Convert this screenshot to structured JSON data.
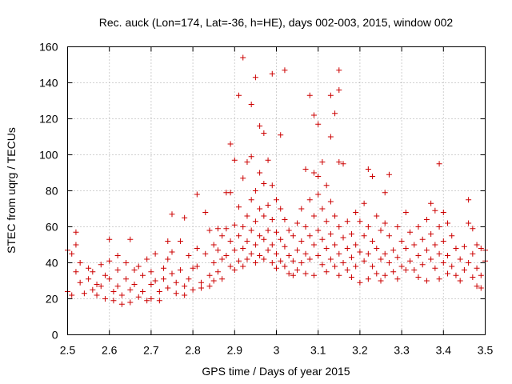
{
  "chart_data": {
    "type": "scatter",
    "title": "Rec. auck (Lon=174, Lat=-36, h=HE), days 002-003, 2015, window 002",
    "xlabel": "GPS time / Days of year 2015",
    "ylabel": "STEC from uqrg / TECUs",
    "xlim": [
      2.5,
      3.5
    ],
    "ylim": [
      0,
      160
    ],
    "xticks": [
      2.5,
      2.6,
      2.7,
      2.8,
      2.9,
      3,
      3.1,
      3.2,
      3.3,
      3.4,
      3.5
    ],
    "xtick_labels": [
      "2.5",
      "2.6",
      "2.7",
      "2.8",
      "2.9",
      "3",
      "3.1",
      "3.2",
      "3.3",
      "3.4",
      "3.5"
    ],
    "yticks": [
      0,
      20,
      40,
      60,
      80,
      100,
      120,
      140,
      160
    ],
    "ytick_labels": [
      "0",
      "20",
      "40",
      "60",
      "80",
      "100",
      "120",
      "140",
      "160"
    ],
    "grid": true,
    "marker": "+",
    "color": "#cc0000",
    "series": [
      {
        "name": "STEC",
        "points": [
          [
            2.5,
            47
          ],
          [
            2.5,
            24
          ],
          [
            2.51,
            45
          ],
          [
            2.51,
            22
          ],
          [
            2.52,
            57
          ],
          [
            2.52,
            50
          ],
          [
            2.52,
            35
          ],
          [
            2.53,
            40
          ],
          [
            2.53,
            29
          ],
          [
            2.54,
            23
          ],
          [
            2.55,
            31
          ],
          [
            2.55,
            37
          ],
          [
            2.56,
            25
          ],
          [
            2.56,
            35
          ],
          [
            2.57,
            28
          ],
          [
            2.57,
            22
          ],
          [
            2.58,
            39
          ],
          [
            2.58,
            27
          ],
          [
            2.59,
            20
          ],
          [
            2.59,
            33
          ],
          [
            2.6,
            53
          ],
          [
            2.6,
            41
          ],
          [
            2.6,
            31
          ],
          [
            2.61,
            24
          ],
          [
            2.61,
            19
          ],
          [
            2.62,
            36
          ],
          [
            2.62,
            27
          ],
          [
            2.62,
            44
          ],
          [
            2.63,
            22
          ],
          [
            2.63,
            17
          ],
          [
            2.64,
            40
          ],
          [
            2.64,
            31
          ],
          [
            2.65,
            53
          ],
          [
            2.65,
            25
          ],
          [
            2.65,
            18
          ],
          [
            2.66,
            36
          ],
          [
            2.66,
            28
          ],
          [
            2.67,
            21
          ],
          [
            2.67,
            38
          ],
          [
            2.68,
            33
          ],
          [
            2.68,
            24
          ],
          [
            2.69,
            19
          ],
          [
            2.69,
            42
          ],
          [
            2.7,
            35
          ],
          [
            2.7,
            28
          ],
          [
            2.7,
            20
          ],
          [
            2.71,
            45
          ],
          [
            2.71,
            30
          ],
          [
            2.72,
            24
          ],
          [
            2.72,
            19
          ],
          [
            2.73,
            37
          ],
          [
            2.73,
            31
          ],
          [
            2.74,
            52
          ],
          [
            2.74,
            42
          ],
          [
            2.74,
            26
          ],
          [
            2.75,
            67
          ],
          [
            2.75,
            46
          ],
          [
            2.75,
            34
          ],
          [
            2.76,
            29
          ],
          [
            2.76,
            23
          ],
          [
            2.77,
            52
          ],
          [
            2.77,
            36
          ],
          [
            2.78,
            65
          ],
          [
            2.78,
            27
          ],
          [
            2.78,
            22
          ],
          [
            2.79,
            44
          ],
          [
            2.79,
            31
          ],
          [
            2.8,
            37
          ],
          [
            2.8,
            25
          ],
          [
            2.81,
            78
          ],
          [
            2.81,
            48
          ],
          [
            2.81,
            38
          ],
          [
            2.82,
            29
          ],
          [
            2.82,
            26
          ],
          [
            2.83,
            68
          ],
          [
            2.83,
            45
          ],
          [
            2.84,
            58
          ],
          [
            2.84,
            33
          ],
          [
            2.84,
            27
          ],
          [
            2.85,
            50
          ],
          [
            2.85,
            40
          ],
          [
            2.85,
            30
          ],
          [
            2.86,
            59
          ],
          [
            2.86,
            47
          ],
          [
            2.86,
            35
          ],
          [
            2.87,
            55
          ],
          [
            2.87,
            42
          ],
          [
            2.87,
            31
          ],
          [
            2.88,
            79
          ],
          [
            2.88,
            59
          ],
          [
            2.88,
            44
          ],
          [
            2.89,
            106
          ],
          [
            2.89,
            79
          ],
          [
            2.89,
            52
          ],
          [
            2.89,
            38
          ],
          [
            2.9,
            97
          ],
          [
            2.9,
            61
          ],
          [
            2.9,
            47
          ],
          [
            2.9,
            36
          ],
          [
            2.91,
            133
          ],
          [
            2.91,
            71
          ],
          [
            2.91,
            55
          ],
          [
            2.91,
            41
          ],
          [
            2.92,
            154
          ],
          [
            2.92,
            87
          ],
          [
            2.92,
            60
          ],
          [
            2.92,
            48
          ],
          [
            2.92,
            38
          ],
          [
            2.93,
            96
          ],
          [
            2.93,
            66
          ],
          [
            2.93,
            52
          ],
          [
            2.93,
            42
          ],
          [
            2.94,
            128
          ],
          [
            2.94,
            99
          ],
          [
            2.94,
            75
          ],
          [
            2.94,
            58
          ],
          [
            2.94,
            45
          ],
          [
            2.95,
            143
          ],
          [
            2.95,
            80
          ],
          [
            2.95,
            63
          ],
          [
            2.95,
            50
          ],
          [
            2.95,
            40
          ],
          [
            2.96,
            116
          ],
          [
            2.96,
            90
          ],
          [
            2.96,
            70
          ],
          [
            2.96,
            55
          ],
          [
            2.96,
            44
          ],
          [
            2.97,
            112
          ],
          [
            2.97,
            84
          ],
          [
            2.97,
            66
          ],
          [
            2.97,
            53
          ],
          [
            2.97,
            42
          ],
          [
            2.98,
            97
          ],
          [
            2.98,
            72
          ],
          [
            2.98,
            58
          ],
          [
            2.98,
            47
          ],
          [
            2.99,
            145
          ],
          [
            2.99,
            83
          ],
          [
            2.99,
            64
          ],
          [
            2.99,
            50
          ],
          [
            2.99,
            40
          ],
          [
            3.0,
            75
          ],
          [
            3.0,
            57
          ],
          [
            3.0,
            45
          ],
          [
            3.0,
            37
          ],
          [
            3.01,
            111
          ],
          [
            3.01,
            70
          ],
          [
            3.01,
            53
          ],
          [
            3.01,
            41
          ],
          [
            3.02,
            147
          ],
          [
            3.02,
            64
          ],
          [
            3.02,
            49
          ],
          [
            3.02,
            38
          ],
          [
            3.03,
            58
          ],
          [
            3.03,
            44
          ],
          [
            3.03,
            34
          ],
          [
            3.04,
            55
          ],
          [
            3.04,
            41
          ],
          [
            3.04,
            33
          ],
          [
            3.05,
            62
          ],
          [
            3.05,
            47
          ],
          [
            3.05,
            36
          ],
          [
            3.06,
            70
          ],
          [
            3.06,
            52
          ],
          [
            3.06,
            40
          ],
          [
            3.07,
            92
          ],
          [
            3.07,
            60
          ],
          [
            3.07,
            45
          ],
          [
            3.07,
            34
          ],
          [
            3.08,
            133
          ],
          [
            3.08,
            75
          ],
          [
            3.08,
            55
          ],
          [
            3.08,
            42
          ],
          [
            3.09,
            122
          ],
          [
            3.09,
            90
          ],
          [
            3.09,
            66
          ],
          [
            3.09,
            50
          ],
          [
            3.09,
            33
          ],
          [
            3.1,
            117
          ],
          [
            3.1,
            88
          ],
          [
            3.1,
            78
          ],
          [
            3.1,
            58
          ],
          [
            3.1,
            44
          ],
          [
            3.11,
            96
          ],
          [
            3.11,
            70
          ],
          [
            3.11,
            53
          ],
          [
            3.11,
            39
          ],
          [
            3.12,
            83
          ],
          [
            3.12,
            63
          ],
          [
            3.12,
            48
          ],
          [
            3.12,
            35
          ],
          [
            3.13,
            133
          ],
          [
            3.13,
            110
          ],
          [
            3.13,
            74
          ],
          [
            3.13,
            56
          ],
          [
            3.13,
            42
          ],
          [
            3.14,
            123
          ],
          [
            3.14,
            66
          ],
          [
            3.14,
            50
          ],
          [
            3.14,
            38
          ],
          [
            3.15,
            147
          ],
          [
            3.15,
            136
          ],
          [
            3.15,
            96
          ],
          [
            3.15,
            60
          ],
          [
            3.15,
            45
          ],
          [
            3.15,
            33
          ],
          [
            3.16,
            95
          ],
          [
            3.16,
            54
          ],
          [
            3.16,
            40
          ],
          [
            3.17,
            63
          ],
          [
            3.17,
            48
          ],
          [
            3.17,
            36
          ],
          [
            3.18,
            56
          ],
          [
            3.18,
            43
          ],
          [
            3.18,
            32
          ],
          [
            3.19,
            68
          ],
          [
            3.19,
            50
          ],
          [
            3.19,
            38
          ],
          [
            3.2,
            63
          ],
          [
            3.2,
            46
          ],
          [
            3.2,
            29
          ],
          [
            3.21,
            73
          ],
          [
            3.21,
            55
          ],
          [
            3.21,
            41
          ],
          [
            3.22,
            92
          ],
          [
            3.22,
            60
          ],
          [
            3.22,
            45
          ],
          [
            3.22,
            31
          ],
          [
            3.23,
            88
          ],
          [
            3.23,
            52
          ],
          [
            3.23,
            38
          ],
          [
            3.24,
            66
          ],
          [
            3.24,
            48
          ],
          [
            3.24,
            34
          ],
          [
            3.25,
            58
          ],
          [
            3.25,
            42
          ],
          [
            3.25,
            30
          ],
          [
            3.26,
            79
          ],
          [
            3.26,
            62
          ],
          [
            3.26,
            45
          ],
          [
            3.26,
            33
          ],
          [
            3.27,
            89
          ],
          [
            3.27,
            55
          ],
          [
            3.27,
            40
          ],
          [
            3.28,
            47
          ],
          [
            3.28,
            35
          ],
          [
            3.29,
            60
          ],
          [
            3.29,
            43
          ],
          [
            3.29,
            31
          ],
          [
            3.3,
            52
          ],
          [
            3.3,
            38
          ],
          [
            3.31,
            68
          ],
          [
            3.31,
            48
          ],
          [
            3.31,
            36
          ],
          [
            3.32,
            57
          ],
          [
            3.32,
            41
          ],
          [
            3.33,
            50
          ],
          [
            3.33,
            36
          ],
          [
            3.34,
            60
          ],
          [
            3.34,
            44
          ],
          [
            3.34,
            32
          ],
          [
            3.35,
            53
          ],
          [
            3.35,
            39
          ],
          [
            3.36,
            64
          ],
          [
            3.36,
            47
          ],
          [
            3.36,
            30
          ],
          [
            3.37,
            73
          ],
          [
            3.37,
            56
          ],
          [
            3.37,
            42
          ],
          [
            3.38,
            69
          ],
          [
            3.38,
            50
          ],
          [
            3.38,
            37
          ],
          [
            3.39,
            95
          ],
          [
            3.39,
            60
          ],
          [
            3.39,
            45
          ],
          [
            3.39,
            31
          ],
          [
            3.4,
            68
          ],
          [
            3.4,
            52
          ],
          [
            3.4,
            40
          ],
          [
            3.41,
            62
          ],
          [
            3.41,
            44
          ],
          [
            3.41,
            34
          ],
          [
            3.42,
            55
          ],
          [
            3.42,
            38
          ],
          [
            3.43,
            48
          ],
          [
            3.43,
            33
          ],
          [
            3.44,
            42
          ],
          [
            3.44,
            30
          ],
          [
            3.45,
            49
          ],
          [
            3.45,
            36
          ],
          [
            3.46,
            75
          ],
          [
            3.46,
            62
          ],
          [
            3.46,
            40
          ],
          [
            3.47,
            59
          ],
          [
            3.47,
            45
          ],
          [
            3.47,
            32
          ],
          [
            3.48,
            50
          ],
          [
            3.48,
            37
          ],
          [
            3.48,
            27
          ],
          [
            3.49,
            48
          ],
          [
            3.49,
            33
          ],
          [
            3.49,
            26
          ],
          [
            3.5,
            47
          ],
          [
            3.5,
            41
          ]
        ]
      }
    ]
  }
}
